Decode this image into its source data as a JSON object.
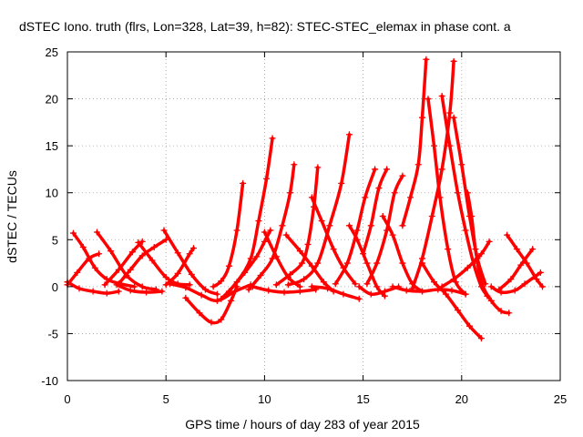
{
  "chart_data": {
    "type": "line",
    "title": "dSTEC Iono. truth (flrs, Lon=328, Lat=39, h=82): STEC-STEC_elemax in phase cont. a",
    "xlabel": "GPS time / hours of day 283 of year 2015",
    "ylabel": "dSTEC  / TECUs",
    "xlim": [
      0,
      25
    ],
    "ylim": [
      -10,
      25
    ],
    "xticks": [
      0,
      5,
      10,
      15,
      20,
      25
    ],
    "yticks": [
      -10,
      -5,
      0,
      5,
      10,
      15,
      20,
      25
    ],
    "grid": true,
    "color": "#ff0000",
    "marker": "plus",
    "series": [
      {
        "points": [
          [
            0.3,
            5.7
          ],
          [
            0.8,
            4.2
          ],
          [
            1.4,
            2.0
          ],
          [
            2.0,
            0.8
          ],
          [
            2.7,
            0.3
          ],
          [
            3.4,
            0.0
          ]
        ]
      },
      {
        "points": [
          [
            0.0,
            0.2
          ],
          [
            0.5,
            1.5
          ],
          [
            1.1,
            3.0
          ],
          [
            1.6,
            3.5
          ]
        ]
      },
      {
        "points": [
          [
            0.0,
            0.5
          ],
          [
            0.6,
            -0.2
          ],
          [
            1.3,
            -0.5
          ],
          [
            2.0,
            -0.7
          ],
          [
            2.6,
            -0.5
          ]
        ]
      },
      {
        "points": [
          [
            1.5,
            5.8
          ],
          [
            2.2,
            3.8
          ],
          [
            3.0,
            1.2
          ],
          [
            3.8,
            0.0
          ],
          [
            4.5,
            -0.3
          ]
        ]
      },
      {
        "points": [
          [
            1.9,
            0.2
          ],
          [
            2.6,
            1.8
          ],
          [
            3.3,
            3.7
          ],
          [
            3.8,
            4.8
          ]
        ]
      },
      {
        "points": [
          [
            2.5,
            0.2
          ],
          [
            3.2,
            -0.4
          ],
          [
            4.0,
            -0.6
          ],
          [
            4.8,
            -0.5
          ]
        ]
      },
      {
        "points": [
          [
            2.6,
            0.3
          ],
          [
            3.2,
            1.8
          ],
          [
            3.8,
            3.3
          ],
          [
            4.4,
            4.2
          ],
          [
            5.0,
            5.0
          ]
        ]
      },
      {
        "points": [
          [
            3.6,
            4.7
          ],
          [
            4.3,
            2.8
          ],
          [
            5.0,
            1.0
          ],
          [
            5.6,
            0.3
          ],
          [
            6.2,
            0.2
          ]
        ]
      },
      {
        "points": [
          [
            4.9,
            6.0
          ],
          [
            5.6,
            3.6
          ],
          [
            6.3,
            1.3
          ],
          [
            7.0,
            -0.3
          ],
          [
            7.6,
            -0.8
          ]
        ]
      },
      {
        "points": [
          [
            5.0,
            0.2
          ],
          [
            5.6,
            1.4
          ],
          [
            6.2,
            3.5
          ],
          [
            6.4,
            4.1
          ]
        ]
      },
      {
        "points": [
          [
            5.2,
            0.3
          ],
          [
            6.0,
            -0.1
          ],
          [
            6.8,
            -0.9
          ],
          [
            7.6,
            -1.5
          ],
          [
            8.5,
            -0.5
          ],
          [
            9.3,
            0.2
          ]
        ]
      },
      {
        "points": [
          [
            6.0,
            -1.2
          ],
          [
            6.7,
            -2.8
          ],
          [
            7.3,
            -3.8
          ],
          [
            7.8,
            -3.5
          ],
          [
            8.3,
            -1.5
          ],
          [
            8.6,
            0.0
          ]
        ]
      },
      {
        "points": [
          [
            7.4,
            0.0
          ],
          [
            7.8,
            0.6
          ],
          [
            8.2,
            2.2
          ],
          [
            8.6,
            6.0
          ],
          [
            8.9,
            11.0
          ]
        ]
      },
      {
        "points": [
          [
            7.8,
            -1.3
          ],
          [
            8.6,
            0.5
          ],
          [
            9.3,
            3.0
          ],
          [
            9.7,
            7.0
          ],
          [
            10.1,
            11.5
          ],
          [
            10.4,
            15.8
          ]
        ]
      },
      {
        "points": [
          [
            8.2,
            -0.5
          ],
          [
            9.0,
            1.5
          ],
          [
            9.6,
            3.2
          ],
          [
            10.0,
            4.8
          ],
          [
            10.3,
            6.0
          ]
        ]
      },
      {
        "points": [
          [
            9.2,
            -0.3
          ],
          [
            9.8,
            1.2
          ],
          [
            10.4,
            3.0
          ],
          [
            10.9,
            6.5
          ],
          [
            11.3,
            10.0
          ],
          [
            11.5,
            13.0
          ]
        ]
      },
      {
        "points": [
          [
            10.0,
            5.8
          ],
          [
            10.6,
            3.2
          ],
          [
            11.2,
            1.0
          ],
          [
            11.8,
            0.0
          ]
        ]
      },
      {
        "points": [
          [
            10.6,
            0.2
          ],
          [
            11.3,
            1.3
          ],
          [
            11.9,
            2.5
          ],
          [
            12.2,
            4.5
          ],
          [
            12.5,
            8.5
          ],
          [
            12.7,
            12.7
          ]
        ]
      },
      {
        "points": [
          [
            9.4,
            0.0
          ],
          [
            10.2,
            -0.4
          ],
          [
            11.0,
            -0.6
          ],
          [
            11.8,
            -0.5
          ],
          [
            12.6,
            -0.3
          ]
        ]
      },
      {
        "points": [
          [
            11.1,
            5.5
          ],
          [
            11.8,
            3.8
          ],
          [
            12.4,
            2.2
          ],
          [
            13.0,
            0.5
          ],
          [
            13.5,
            -0.5
          ]
        ]
      },
      {
        "points": [
          [
            11.2,
            0.2
          ],
          [
            12.0,
            0.8
          ],
          [
            12.7,
            2.5
          ],
          [
            13.3,
            6.5
          ],
          [
            13.9,
            11.0
          ],
          [
            14.3,
            16.2
          ]
        ]
      },
      {
        "points": [
          [
            12.4,
            9.5
          ],
          [
            12.9,
            7.0
          ],
          [
            13.5,
            4.0
          ],
          [
            14.0,
            2.0
          ],
          [
            14.6,
            0.3
          ]
        ]
      },
      {
        "points": [
          [
            12.4,
            0.0
          ],
          [
            13.2,
            -0.2
          ],
          [
            14.0,
            -0.8
          ],
          [
            14.8,
            -1.3
          ]
        ]
      },
      {
        "points": [
          [
            13.6,
            0.3
          ],
          [
            14.2,
            2.5
          ],
          [
            14.7,
            6.0
          ],
          [
            15.1,
            9.5
          ],
          [
            15.6,
            12.5
          ]
        ]
      },
      {
        "points": [
          [
            14.3,
            6.5
          ],
          [
            14.7,
            5.0
          ],
          [
            15.2,
            2.5
          ],
          [
            15.7,
            0.0
          ],
          [
            16.1,
            -1.0
          ]
        ]
      },
      {
        "points": [
          [
            15.0,
            3.5
          ],
          [
            15.4,
            6.5
          ],
          [
            15.8,
            10.5
          ],
          [
            16.2,
            12.5
          ]
        ]
      },
      {
        "points": [
          [
            14.8,
            0.0
          ],
          [
            15.4,
            -0.8
          ],
          [
            16.1,
            -0.5
          ],
          [
            16.8,
            0.0
          ]
        ]
      },
      {
        "points": [
          [
            15.2,
            0.3
          ],
          [
            15.7,
            2.5
          ],
          [
            16.2,
            6.0
          ],
          [
            16.6,
            10.0
          ],
          [
            17.0,
            11.8
          ]
        ]
      },
      {
        "points": [
          [
            16.0,
            7.5
          ],
          [
            16.5,
            5.5
          ],
          [
            17.0,
            2.5
          ],
          [
            17.5,
            0.3
          ],
          [
            18.0,
            -0.5
          ]
        ]
      },
      {
        "points": [
          [
            17.0,
            6.5
          ],
          [
            17.4,
            9.5
          ],
          [
            17.8,
            13.0
          ],
          [
            18.0,
            18.0
          ],
          [
            18.2,
            24.2
          ]
        ]
      },
      {
        "points": [
          [
            18.3,
            20.0
          ],
          [
            18.6,
            15.0
          ],
          [
            18.9,
            9.5
          ],
          [
            19.3,
            4.0
          ],
          [
            19.7,
            0.5
          ],
          [
            20.2,
            -0.8
          ]
        ]
      },
      {
        "points": [
          [
            16.5,
            0.0
          ],
          [
            17.2,
            -0.4
          ],
          [
            18.0,
            -0.5
          ],
          [
            18.8,
            -0.3
          ],
          [
            19.5,
            -0.4
          ],
          [
            20.2,
            -0.8
          ]
        ]
      },
      {
        "points": [
          [
            17.5,
            -0.2
          ],
          [
            18.0,
            3.0
          ],
          [
            18.5,
            7.5
          ],
          [
            19.0,
            12.5
          ],
          [
            19.4,
            18.5
          ],
          [
            19.6,
            24.0
          ]
        ]
      },
      {
        "points": [
          [
            19.0,
            20.3
          ],
          [
            19.4,
            15.0
          ],
          [
            19.8,
            10.0
          ],
          [
            20.2,
            6.0
          ],
          [
            20.6,
            2.5
          ],
          [
            21.0,
            0.0
          ],
          [
            21.3,
            -1.0
          ]
        ]
      },
      {
        "points": [
          [
            19.6,
            18.0
          ],
          [
            20.0,
            13.0
          ],
          [
            20.4,
            7.5
          ],
          [
            20.8,
            3.0
          ],
          [
            21.2,
            0.3
          ]
        ]
      },
      {
        "points": [
          [
            18.0,
            2.5
          ],
          [
            18.6,
            0.5
          ],
          [
            19.2,
            -0.8
          ],
          [
            19.8,
            -2.5
          ],
          [
            20.4,
            -4.2
          ],
          [
            21.0,
            -5.5
          ]
        ]
      },
      {
        "points": [
          [
            20.3,
            10.0
          ],
          [
            20.5,
            7.5
          ],
          [
            20.7,
            4.0
          ],
          [
            21.0,
            0.5
          ],
          [
            21.5,
            -1.5
          ],
          [
            22.0,
            -2.6
          ],
          [
            22.4,
            -2.8
          ]
        ]
      },
      {
        "points": [
          [
            19.0,
            0.0
          ],
          [
            19.6,
            0.8
          ],
          [
            20.3,
            2.0
          ],
          [
            21.0,
            3.5
          ],
          [
            21.4,
            4.8
          ]
        ]
      },
      {
        "points": [
          [
            21.5,
            0.0
          ],
          [
            22.0,
            -0.6
          ],
          [
            22.7,
            -0.4
          ],
          [
            23.2,
            0.3
          ],
          [
            24.0,
            1.5
          ]
        ]
      },
      {
        "points": [
          [
            22.3,
            5.5
          ],
          [
            22.8,
            4.0
          ],
          [
            23.3,
            2.5
          ],
          [
            23.8,
            0.8
          ],
          [
            24.1,
            0.0
          ]
        ]
      },
      {
        "points": [
          [
            21.9,
            -0.3
          ],
          [
            22.5,
            0.8
          ],
          [
            23.0,
            2.3
          ],
          [
            23.6,
            4.0
          ]
        ]
      }
    ]
  }
}
